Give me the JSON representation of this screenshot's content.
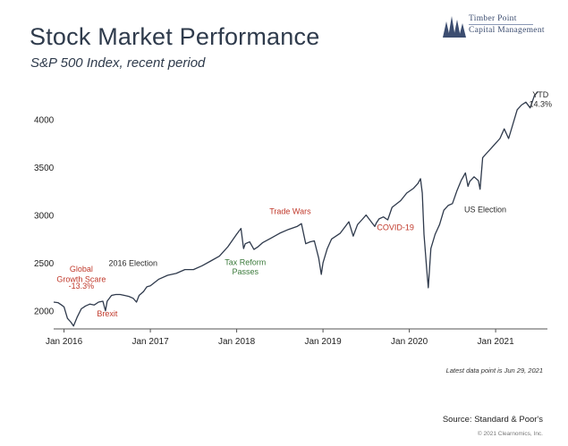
{
  "header": {
    "title": "Stock Market Performance",
    "subtitle": "S&P 500 Index, recent period"
  },
  "logo": {
    "line1": "Timber Point",
    "line2": "Capital Management"
  },
  "footer": {
    "note": "Latest data point is Jun 29, 2021",
    "source": "Source: Standard & Poor's",
    "copyright": "© 2021 Clearnomics, Inc."
  },
  "colors": {
    "line": "#2f3a4c",
    "annotation_red": "#c0392b",
    "annotation_green": "#3b7a3b",
    "annotation_dark": "#2b2b2b"
  },
  "chart_data": {
    "type": "line",
    "title": "Stock Market Performance",
    "subtitle": "S&P 500 Index, recent period",
    "xlabel": "",
    "ylabel": "",
    "xlim": [
      2015.88,
      2021.6
    ],
    "ylim": [
      1810,
      4360
    ],
    "x_ticks": [
      {
        "value": 2016,
        "label": "Jan 2016"
      },
      {
        "value": 2017,
        "label": "Jan 2017"
      },
      {
        "value": 2018,
        "label": "Jan 2018"
      },
      {
        "value": 2019,
        "label": "Jan 2019"
      },
      {
        "value": 2020,
        "label": "Jan 2020"
      },
      {
        "value": 2021,
        "label": "Jan 2021"
      }
    ],
    "y_ticks": [
      2000,
      2500,
      3000,
      3500,
      4000
    ],
    "grid": false,
    "legend": "none",
    "series": [
      {
        "x": [
          2015.88,
          2015.93,
          2015.97,
          2016.0,
          2016.04,
          2016.08,
          2016.11,
          2016.15,
          2016.2,
          2016.25,
          2016.3,
          2016.35,
          2016.4,
          2016.45,
          2016.48,
          2016.5,
          2016.55,
          2016.6,
          2016.65,
          2016.7,
          2016.75,
          2016.8,
          2016.84,
          2016.87,
          2016.92,
          2016.96,
          2017.0,
          2017.1,
          2017.2,
          2017.3,
          2017.4,
          2017.5,
          2017.6,
          2017.7,
          2017.8,
          2017.9,
          2018.0,
          2018.05,
          2018.08,
          2018.1,
          2018.15,
          2018.2,
          2018.25,
          2018.3,
          2018.4,
          2018.5,
          2018.6,
          2018.7,
          2018.75,
          2018.8,
          2018.85,
          2018.9,
          2018.95,
          2018.98,
          2019.0,
          2019.05,
          2019.1,
          2019.2,
          2019.3,
          2019.35,
          2019.4,
          2019.45,
          2019.5,
          2019.6,
          2019.62,
          2019.65,
          2019.7,
          2019.75,
          2019.8,
          2019.9,
          2019.97,
          2020.05,
          2020.1,
          2020.13,
          2020.15,
          2020.17,
          2020.2,
          2020.22,
          2020.25,
          2020.3,
          2020.35,
          2020.4,
          2020.45,
          2020.5,
          2020.55,
          2020.6,
          2020.65,
          2020.68,
          2020.7,
          2020.75,
          2020.8,
          2020.82,
          2020.85,
          2020.9,
          2020.95,
          2021.0,
          2021.05,
          2021.1,
          2021.15,
          2021.2,
          2021.25,
          2021.3,
          2021.35,
          2021.4,
          2021.45,
          2021.49
        ],
        "values": [
          2090,
          2085,
          2060,
          2040,
          1920,
          1880,
          1840,
          1930,
          2020,
          2050,
          2070,
          2060,
          2090,
          2100,
          2000,
          2100,
          2160,
          2170,
          2170,
          2160,
          2150,
          2130,
          2090,
          2160,
          2200,
          2250,
          2260,
          2330,
          2370,
          2390,
          2430,
          2430,
          2470,
          2520,
          2570,
          2670,
          2800,
          2860,
          2650,
          2700,
          2720,
          2640,
          2670,
          2710,
          2760,
          2810,
          2850,
          2880,
          2910,
          2700,
          2720,
          2730,
          2550,
          2380,
          2500,
          2650,
          2750,
          2810,
          2930,
          2780,
          2900,
          2950,
          3000,
          2880,
          2920,
          2960,
          2980,
          2950,
          3080,
          3150,
          3230,
          3280,
          3330,
          3380,
          3230,
          2800,
          2450,
          2240,
          2650,
          2800,
          2900,
          3050,
          3100,
          3120,
          3250,
          3360,
          3440,
          3300,
          3350,
          3400,
          3360,
          3270,
          3600,
          3650,
          3700,
          3750,
          3800,
          3900,
          3800,
          3950,
          4100,
          4150,
          4180,
          4120,
          4250,
          4290
        ]
      }
    ],
    "annotations": [
      {
        "label": "Global",
        "color": "red",
        "x": 2016.2,
        "y": 2410
      },
      {
        "label": "Growth Scare",
        "color": "red",
        "x": 2016.2,
        "y": 2300
      },
      {
        "label": "-13.3%",
        "color": "red",
        "x": 2016.2,
        "y": 2230
      },
      {
        "label": "Brexit",
        "color": "red",
        "x": 2016.5,
        "y": 1940
      },
      {
        "label": "2016 Election",
        "color": "dark",
        "x": 2016.8,
        "y": 2470
      },
      {
        "label": "Tax Reform",
        "color": "green",
        "x": 2018.1,
        "y": 2480
      },
      {
        "label": "Passes",
        "color": "green",
        "x": 2018.1,
        "y": 2380
      },
      {
        "label": "Trade Wars",
        "color": "red",
        "x": 2018.62,
        "y": 3010
      },
      {
        "label": "COVID-19",
        "color": "red",
        "x": 2019.84,
        "y": 2840
      },
      {
        "label": "US Election",
        "color": "dark",
        "x": 2020.88,
        "y": 3030
      },
      {
        "label": "YTD",
        "color": "dark",
        "x": 2021.52,
        "y": 4230
      },
      {
        "label": "14.3%",
        "color": "dark",
        "x": 2021.52,
        "y": 4130
      }
    ]
  }
}
